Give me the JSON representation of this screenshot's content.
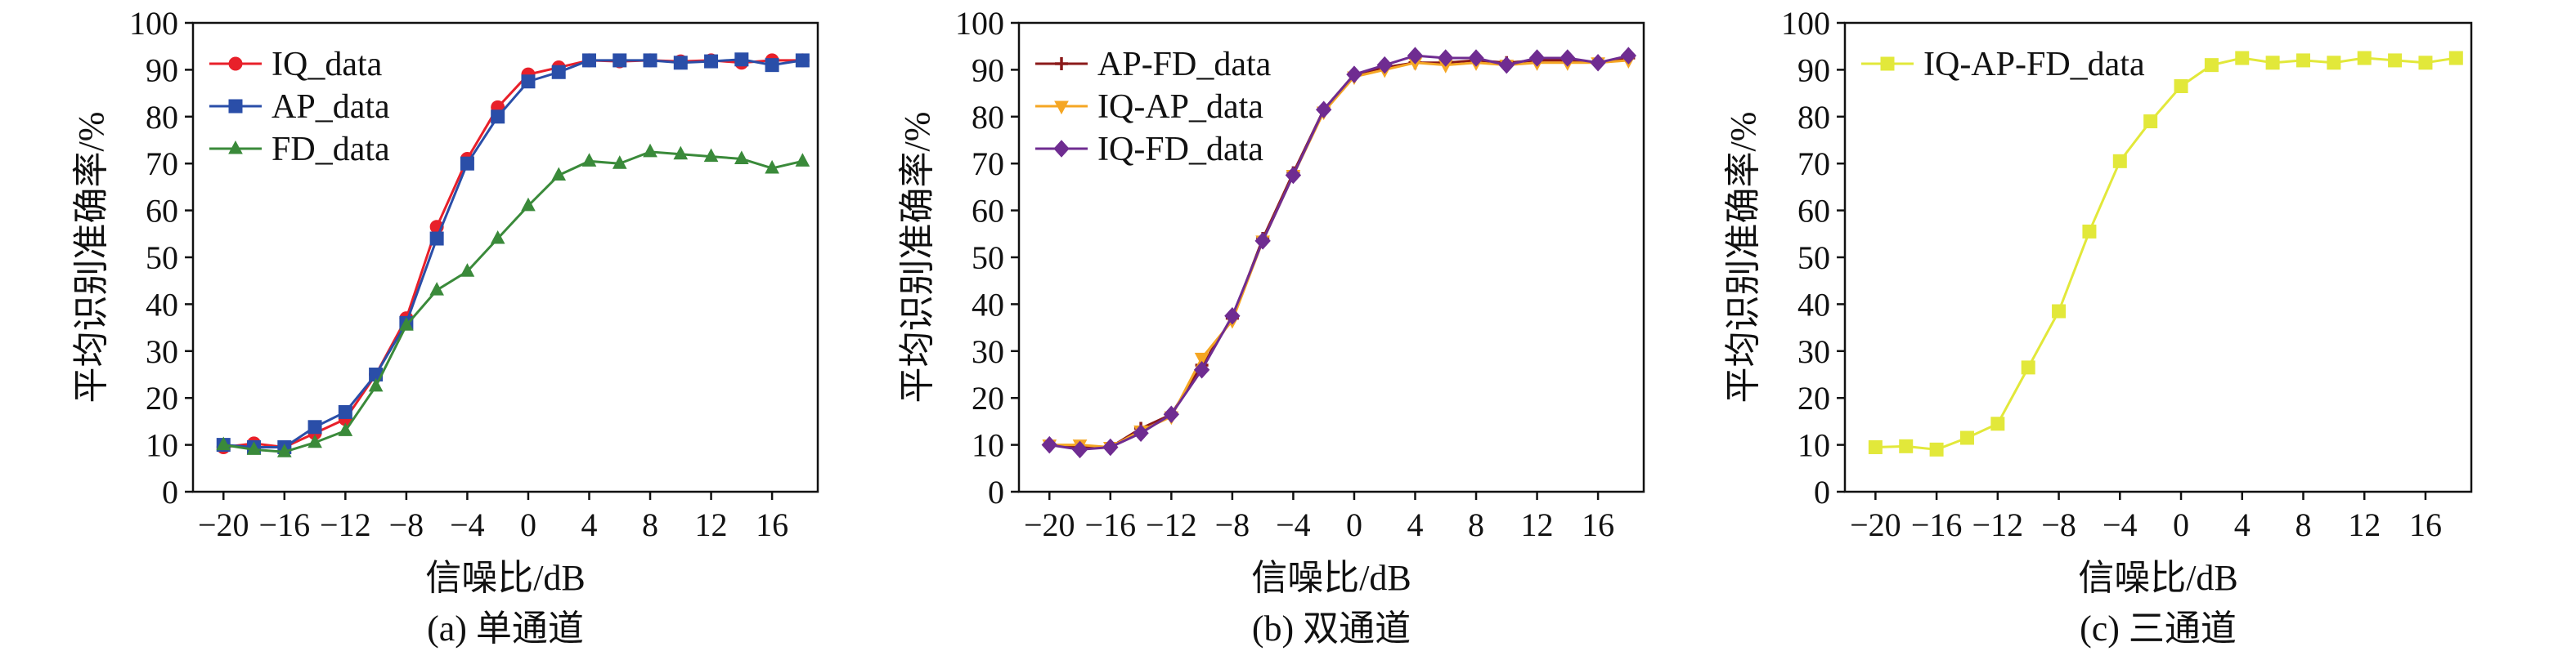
{
  "chart_data": [
    {
      "type": "line",
      "caption": "(a) 单通道",
      "xlabel": "信噪比/dB",
      "ylabel": "平均识别准确率/%",
      "xlim": [
        -22,
        19
      ],
      "ylim": [
        0,
        100
      ],
      "xticks": [
        -20,
        -16,
        -12,
        -8,
        -4,
        0,
        4,
        8,
        12,
        16
      ],
      "xtick_labels": [
        "−20",
        "−16",
        "−12",
        "−8",
        "−4",
        "0",
        "4",
        "8",
        "12",
        "16"
      ],
      "yticks": [
        0,
        10,
        20,
        30,
        40,
        50,
        60,
        70,
        80,
        90,
        100
      ],
      "ytick_labels": [
        "0",
        "10",
        "20",
        "30",
        "40",
        "50",
        "60",
        "70",
        "80",
        "90",
        "100"
      ],
      "legend_position": "top-left",
      "x": [
        -20,
        -18,
        -16,
        -14,
        -12,
        -10,
        -8,
        -6,
        -4,
        -2,
        0,
        2,
        4,
        6,
        8,
        10,
        12,
        14,
        16,
        18
      ],
      "series": [
        {
          "name": "IQ_data",
          "color": "#e8202a",
          "marker": "circle",
          "values": [
            9.5,
            10.3,
            9.5,
            12.5,
            15.5,
            25.0,
            37.0,
            56.5,
            71.0,
            82.0,
            89.0,
            90.5,
            92.0,
            91.8,
            92.0,
            91.8,
            92.0,
            91.5,
            92.0,
            92.0
          ]
        },
        {
          "name": "AP_data",
          "color": "#2a4ea8",
          "marker": "square",
          "values": [
            10.0,
            9.5,
            9.5,
            13.8,
            17.0,
            25.0,
            36.0,
            54.0,
            70.0,
            80.0,
            87.5,
            89.5,
            92.0,
            92.0,
            92.0,
            91.5,
            91.8,
            92.2,
            91.0,
            92.0
          ]
        },
        {
          "name": "FD_data",
          "color": "#3a8a3a",
          "marker": "triangle",
          "values": [
            10.0,
            9.0,
            8.5,
            10.5,
            13.0,
            22.5,
            35.5,
            43.0,
            47.0,
            54.0,
            61.0,
            67.5,
            70.5,
            70.0,
            72.5,
            72.0,
            71.5,
            71.0,
            69.0,
            70.5
          ]
        }
      ]
    },
    {
      "type": "line",
      "caption": "(b) 双通道",
      "xlabel": "信噪比/dB",
      "ylabel": "平均识别准确率/%",
      "xlim": [
        -22,
        19
      ],
      "ylim": [
        0,
        100
      ],
      "xticks": [
        -20,
        -16,
        -12,
        -8,
        -4,
        0,
        4,
        8,
        12,
        16
      ],
      "xtick_labels": [
        "−20",
        "−16",
        "−12",
        "−8",
        "−4",
        "0",
        "4",
        "8",
        "12",
        "16"
      ],
      "yticks": [
        0,
        10,
        20,
        30,
        40,
        50,
        60,
        70,
        80,
        90,
        100
      ],
      "ytick_labels": [
        "0",
        "10",
        "20",
        "30",
        "40",
        "50",
        "60",
        "70",
        "80",
        "90",
        "100"
      ],
      "legend_position": "top-left",
      "x": [
        -20,
        -18,
        -16,
        -14,
        -12,
        -10,
        -8,
        -6,
        -4,
        -2,
        0,
        2,
        4,
        6,
        8,
        10,
        12,
        14,
        16,
        18
      ],
      "series": [
        {
          "name": "AP-FD_data",
          "color": "#8b1a1a",
          "marker": "plus",
          "values": [
            10.0,
            9.5,
            9.5,
            13.5,
            16.5,
            27.0,
            37.0,
            54.0,
            68.0,
            81.5,
            89.0,
            90.5,
            91.5,
            91.5,
            92.0,
            91.5,
            92.0,
            92.0,
            91.5,
            92.5
          ]
        },
        {
          "name": "IQ-AP_data",
          "color": "#f5a623",
          "marker": "triangle-down",
          "values": [
            10.0,
            10.0,
            9.5,
            13.0,
            16.0,
            28.5,
            36.5,
            53.5,
            67.5,
            81.0,
            88.5,
            90.0,
            91.5,
            91.0,
            91.5,
            91.0,
            91.5,
            91.5,
            91.5,
            92.0
          ]
        },
        {
          "name": "IQ-FD_data",
          "color": "#6f2c91",
          "marker": "diamond",
          "values": [
            10.0,
            9.0,
            9.5,
            12.5,
            16.5,
            26.0,
            37.5,
            53.5,
            67.5,
            81.5,
            89.0,
            91.0,
            93.0,
            92.5,
            92.5,
            91.0,
            92.5,
            92.5,
            91.5,
            93.0
          ]
        }
      ]
    },
    {
      "type": "line",
      "caption": "(c) 三通道",
      "xlabel": "信噪比/dB",
      "ylabel": "平均识别准确率/%",
      "xlim": [
        -22,
        19
      ],
      "ylim": [
        0,
        100
      ],
      "xticks": [
        -20,
        -16,
        -12,
        -8,
        -4,
        0,
        4,
        8,
        12,
        16
      ],
      "xtick_labels": [
        "−20",
        "−16",
        "−12",
        "−8",
        "−4",
        "0",
        "4",
        "8",
        "12",
        "16"
      ],
      "yticks": [
        0,
        10,
        20,
        30,
        40,
        50,
        60,
        70,
        80,
        90,
        100
      ],
      "ytick_labels": [
        "0",
        "10",
        "20",
        "30",
        "40",
        "50",
        "60",
        "70",
        "80",
        "90",
        "100"
      ],
      "legend_position": "top-left",
      "x": [
        -20,
        -18,
        -16,
        -14,
        -12,
        -10,
        -8,
        -6,
        -4,
        -2,
        0,
        2,
        4,
        6,
        8,
        10,
        12,
        14,
        16,
        18
      ],
      "series": [
        {
          "name": "IQ-AP-FD_data",
          "color": "#e2e83a",
          "marker": "square",
          "values": [
            9.5,
            9.7,
            9.0,
            11.5,
            14.5,
            26.5,
            38.5,
            55.5,
            70.5,
            79.0,
            86.5,
            91.0,
            92.5,
            91.5,
            92.0,
            91.5,
            92.5,
            92.0,
            91.5,
            92.5
          ]
        }
      ]
    }
  ]
}
